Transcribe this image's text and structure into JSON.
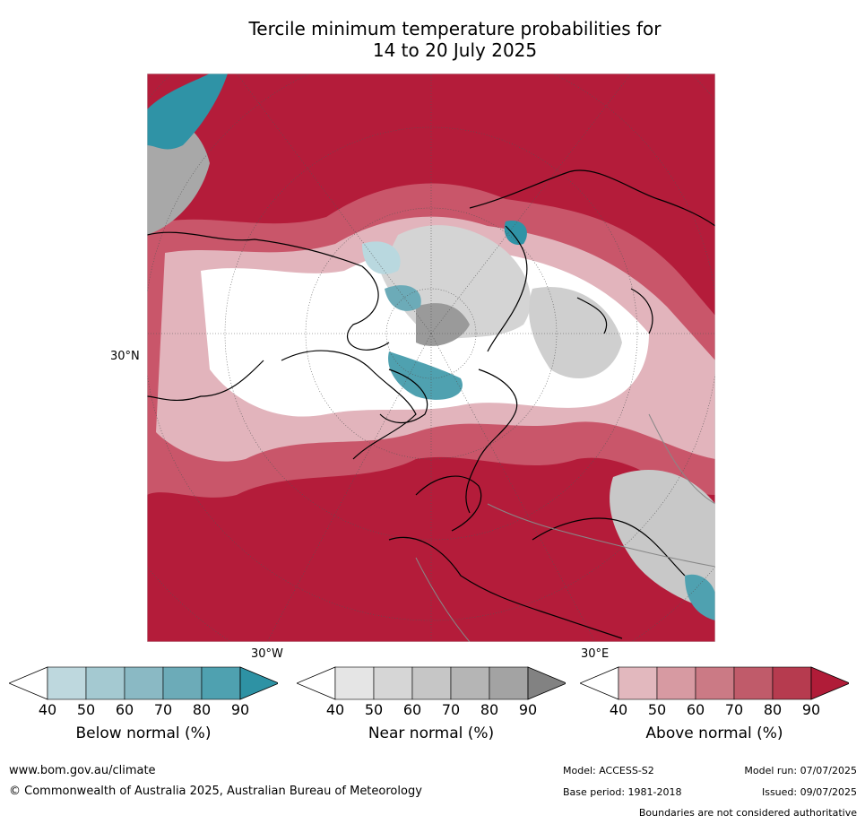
{
  "title_line1": "Tercile minimum temperature probabilities for",
  "title_line2": "14 to 20 July 2025",
  "map": {
    "lat_label": "30°N",
    "lon_label_west": "30°W",
    "lon_label_east": "30°E",
    "colors": {
      "above_strong": "#b41c3a",
      "above_mid": "#c9566a",
      "above_light": "#e2b4bc",
      "below_strong": "#2f93a6",
      "below_light": "#b9d8df",
      "near_dark": "#9a9a9a",
      "near_light": "#d4d4d4"
    }
  },
  "colorbars": [
    {
      "label": "Below normal (%)",
      "ticks": [
        "40",
        "50",
        "60",
        "70",
        "80",
        "90"
      ],
      "colors": [
        "#bed8de",
        "#a4c9d1",
        "#8ab9c4",
        "#6cabb8",
        "#4fa1b0",
        "#2e92a4"
      ]
    },
    {
      "label": "Near normal (%)",
      "ticks": [
        "40",
        "50",
        "60",
        "70",
        "80",
        "90"
      ],
      "colors": [
        "#e5e5e5",
        "#d6d6d6",
        "#c6c6c6",
        "#b5b5b5",
        "#a3a3a3",
        "#828282"
      ]
    },
    {
      "label": "Above normal (%)",
      "ticks": [
        "40",
        "50",
        "60",
        "70",
        "80",
        "90"
      ],
      "colors": [
        "#e2b8be",
        "#d79aa2",
        "#cb7a85",
        "#c05b6a",
        "#b63b4f",
        "#b01c38"
      ]
    }
  ],
  "footer": {
    "website": "www.bom.gov.au/climate",
    "copyright": "© Commonwealth of Australia 2025, Australian Bureau of Meteorology",
    "model": "Model: ACCESS-S2",
    "model_run": "Model run: 07/07/2025",
    "base_period": "Base period: 1981-2018",
    "issued": "Issued: 09/07/2025",
    "disclaimer": "Boundaries are not considered authoritative"
  }
}
